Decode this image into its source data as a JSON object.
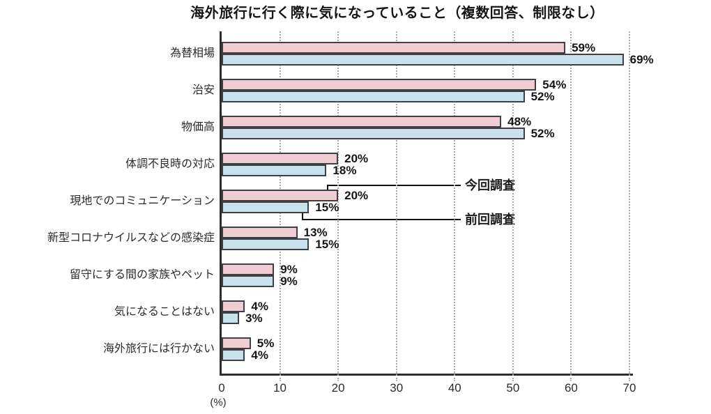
{
  "title": "海外旅行に行く際に気になっていること（複数回答、制限なし）",
  "chart_data": {
    "type": "bar",
    "orientation": "horizontal",
    "title": "海外旅行に行く際に気になっていること（複数回答、制限なし）",
    "categories": [
      "為替相場",
      "治安",
      "物価高",
      "体調不良時の対応",
      "現地でのコミュニケーション",
      "新型コロナウイルスなどの感染症",
      "留守にする間の家族やペット",
      "気になることはない",
      "海外旅行には行かない"
    ],
    "series": [
      {
        "name": "今回調査",
        "color": "#f0cdd3",
        "values": [
          59,
          54,
          48,
          20,
          20,
          13,
          9,
          4,
          5
        ]
      },
      {
        "name": "前回調査",
        "color": "#c9e0ed",
        "values": [
          69,
          52,
          52,
          18,
          15,
          15,
          9,
          3,
          4
        ]
      }
    ],
    "value_suffix": "%",
    "xlabel": "(%)",
    "x_ticks": [
      0,
      10,
      20,
      30,
      40,
      50,
      60,
      70
    ],
    "xlim": [
      0,
      70
    ],
    "grid": "vertical-dotted",
    "legend_position": "callout-right",
    "colors": {
      "bar_border": "#3c3f45",
      "axis": "#2d2d2d",
      "gridline": "#a9a9a9",
      "text": "#151515"
    }
  }
}
